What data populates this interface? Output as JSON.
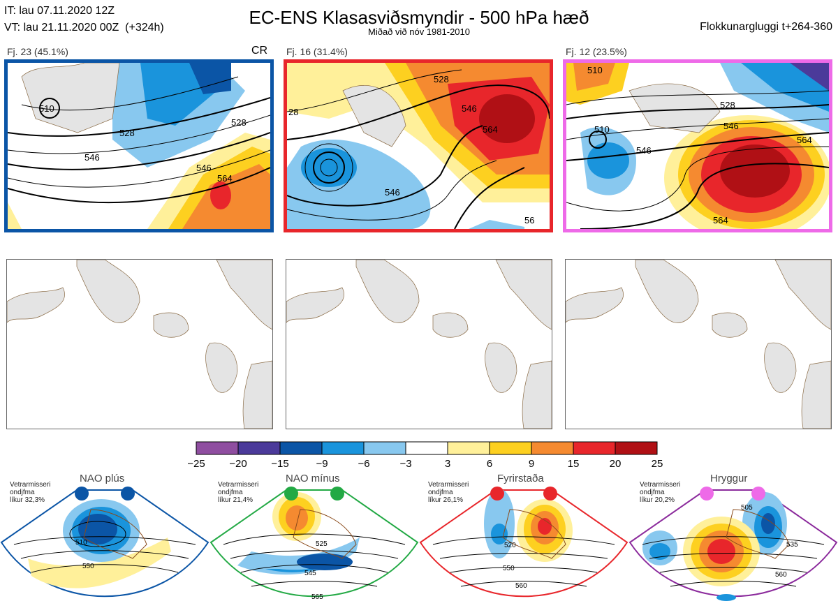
{
  "header": {
    "it_line": "IT: lau 07.11.2020 12Z",
    "vt_line": "VT: lau 21.11.2020 00Z  (+324h)",
    "title": "EC-ENS Klasasviðsmyndir - 500 hPa hæð",
    "subtitle": "Miðað við nóv 1981-2010",
    "window": "Flokkunargluggi t+264-360"
  },
  "clusters": [
    {
      "label": "Fj. 23 (45.1%)",
      "border": "#0b55a6",
      "tag": "CR",
      "contours": [
        "510",
        "528",
        "546",
        "564",
        "546",
        "528"
      ]
    },
    {
      "label": "Fj. 16 (31.4%)",
      "border": "#e8262b",
      "tag": "",
      "contours": [
        "528",
        "28",
        "546",
        "564",
        "546",
        "56"
      ]
    },
    {
      "label": "Fj. 12 (23.5%)",
      "border": "#ee6ae8",
      "tag": "",
      "contours": [
        "510",
        "528",
        "546",
        "564",
        "510",
        "546",
        "564"
      ]
    }
  ],
  "colorbar": {
    "ticks": [
      "−25",
      "−20",
      "−15",
      "−9",
      "−6",
      "−3",
      "3",
      "6",
      "9",
      "15",
      "20",
      "25"
    ],
    "colors": [
      "#8f4ea0",
      "#4b3a9a",
      "#0b55a6",
      "#1a94dc",
      "#88c8ef",
      "#ffffff",
      "#fff09a",
      "#fdd020",
      "#f58a30",
      "#e8262b",
      "#b01015"
    ]
  },
  "regimes": [
    {
      "name": "NAO plús",
      "note": "Vetrarmisseri\nondjfma\nlíkur 32,3%",
      "color": "#0b55a6",
      "contours": [
        "510",
        "550"
      ]
    },
    {
      "name": "NAO mínus",
      "note": "Vetrarmisseri\nondjfma\nlíkur 21,4%",
      "color": "#22a944",
      "contours": [
        "525",
        "545",
        "565"
      ]
    },
    {
      "name": "Fyrirstaða",
      "note": "Vetrarmisseri\nondjfma\nlíkur 26,1%",
      "color": "#e8262b",
      "contours": [
        "520",
        "550",
        "560"
      ]
    },
    {
      "name": "Hryggur",
      "note": "Vetrarmisseri\nondjfma\nlíkur 20,2%",
      "color": "#ee6ae8",
      "contours": [
        "505",
        "535",
        "560"
      ]
    }
  ]
}
